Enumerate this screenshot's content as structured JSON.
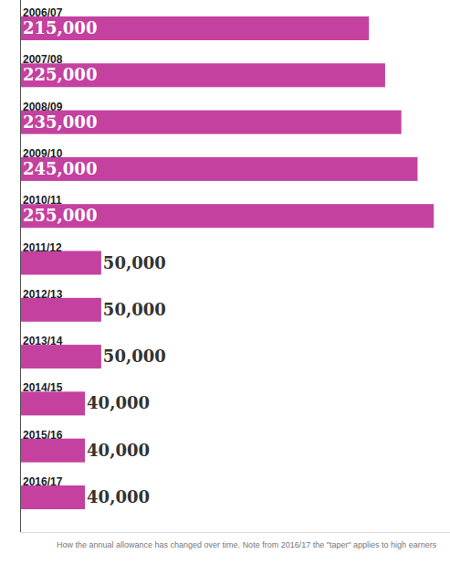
{
  "chart_data": {
    "type": "bar",
    "orientation": "horizontal",
    "categories": [
      "2006/07",
      "2007/08",
      "2008/09",
      "2009/10",
      "2010/11",
      "2011/12",
      "2012/13",
      "2013/14",
      "2014/15",
      "2015/16",
      "2016/17"
    ],
    "values": [
      215000,
      225000,
      235000,
      245000,
      255000,
      50000,
      50000,
      50000,
      40000,
      40000,
      40000
    ],
    "value_labels": [
      "215,000",
      "225,000",
      "235,000",
      "245,000",
      "255,000",
      "50,000",
      "50,000",
      "50,000",
      "40,000",
      "40,000",
      "40,000"
    ],
    "data_labels": true,
    "color": "#c4419f",
    "xlim": [
      0,
      265000
    ],
    "tick_labels": false,
    "grid": false,
    "note": "How the annual allowance has changed over time. Note from 2016/17 the \"taper\" applies to high earners"
  }
}
